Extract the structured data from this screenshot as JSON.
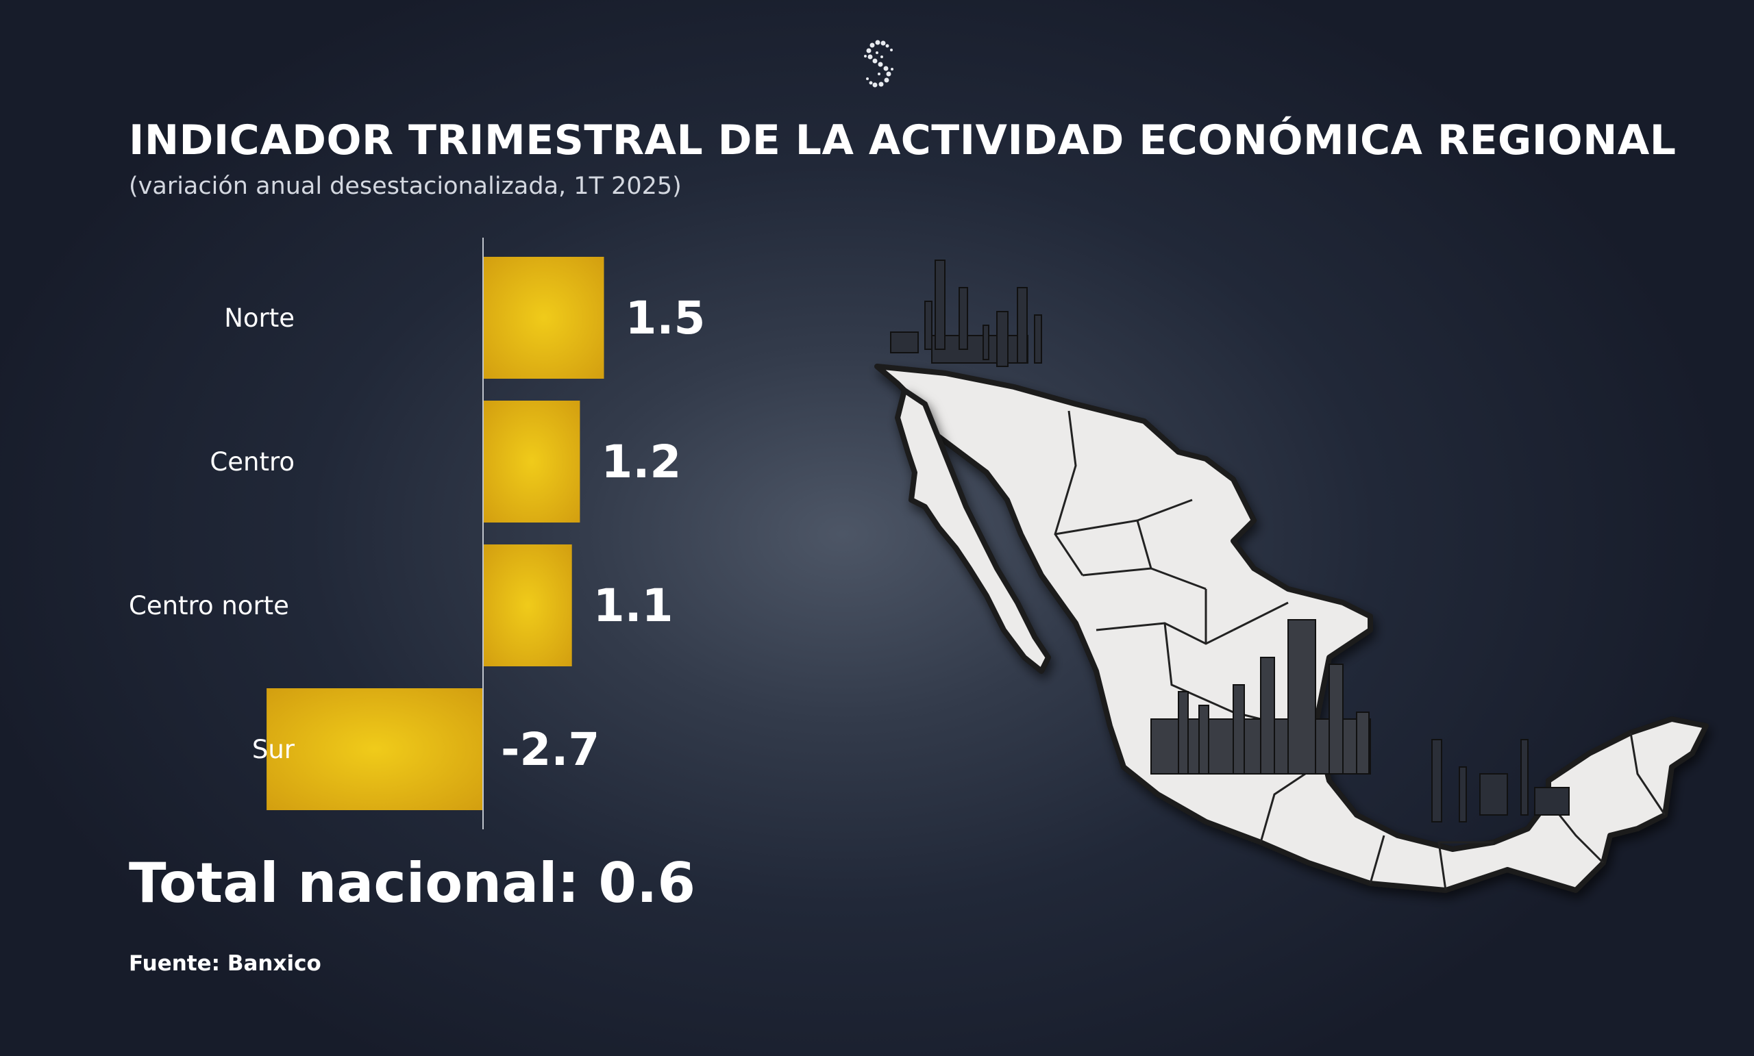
{
  "header": {
    "title": "INDICADOR TRIMESTRAL DE LA ACTIVIDAD ECONÓMICA REGIONAL",
    "subtitle": "(variación anual desestacionalizada, 1T 2025)"
  },
  "footer": {
    "total": "Total nacional: 0.6",
    "source": "Fuente: Banxico"
  },
  "colors": {
    "bar_center": "#f0cb1a",
    "bar_edge": "#d4a00f",
    "background": "#1f2535",
    "axis": "#bfc4cc"
  },
  "chart_data": {
    "type": "bar",
    "orientation": "horizontal",
    "categories": [
      "Norte",
      "Centro",
      "Centro norte",
      "Sur"
    ],
    "values": [
      1.5,
      1.2,
      1.1,
      -2.7
    ],
    "value_labels": [
      "1.5",
      "1.2",
      "1.1",
      "-2.7"
    ],
    "title": "INDICADOR TRIMESTRAL DE LA ACTIVIDAD ECONÓMICA REGIONAL",
    "subtitle": "(variación anual desestacionalizada, 1T 2025)",
    "xlim": [
      -2.7,
      1.5
    ],
    "grid": false,
    "legend": "none"
  },
  "illustration": {
    "icon": "mexico-map-industrial-icon"
  },
  "brand": {
    "icon": "s-logo-icon"
  }
}
